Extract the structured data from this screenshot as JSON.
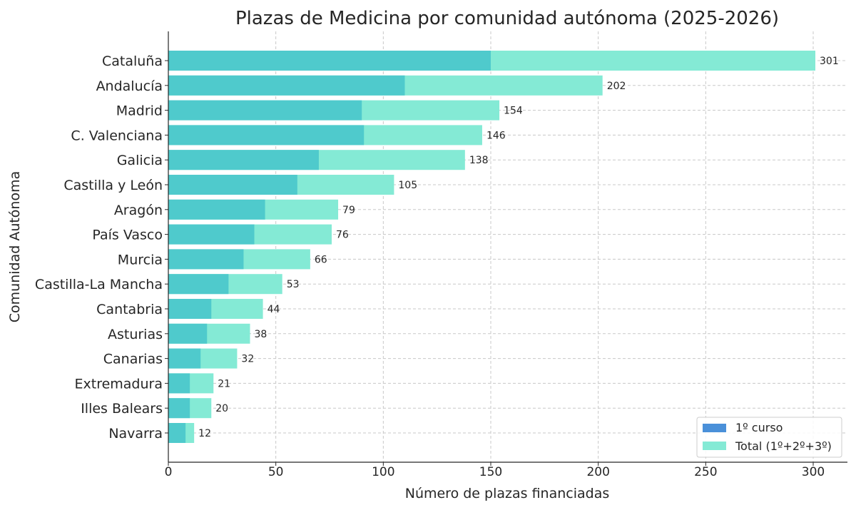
{
  "chart_data": {
    "type": "bar",
    "orientation": "horizontal",
    "title": "Plazas de Medicina por comunidad autónoma (2025-2026)",
    "xlabel": "Número de plazas financiadas",
    "ylabel": "Comunidad Autónoma",
    "xlim": [
      0,
      315
    ],
    "xticks": [
      0,
      50,
      100,
      150,
      200,
      250,
      300
    ],
    "grid": true,
    "legend_placement": "bottom-right",
    "categories": [
      "Cataluña",
      "Andalucía",
      "Madrid",
      "C. Valenciana",
      "Galicia",
      "Castilla y León",
      "Aragón",
      "País Vasco",
      "Murcia",
      "Castilla-La Mancha",
      "Cantabria",
      "Asturias",
      "Canarias",
      "Extremadura",
      "Illes Balears",
      "Navarra"
    ],
    "series": [
      {
        "name": "1º curso",
        "color": "#4a90d9",
        "values": [
          150,
          110,
          90,
          91,
          70,
          60,
          45,
          40,
          35,
          28,
          20,
          18,
          15,
          10,
          10,
          8
        ]
      },
      {
        "name": "Total (1º+2º+3º)",
        "color": "#84ead5",
        "values": [
          301,
          202,
          154,
          146,
          138,
          105,
          79,
          76,
          66,
          53,
          44,
          38,
          32,
          21,
          20,
          12
        ]
      }
    ],
    "overlap_color": "#4fcacc",
    "data_labels": "Total values shown at bar ends"
  }
}
